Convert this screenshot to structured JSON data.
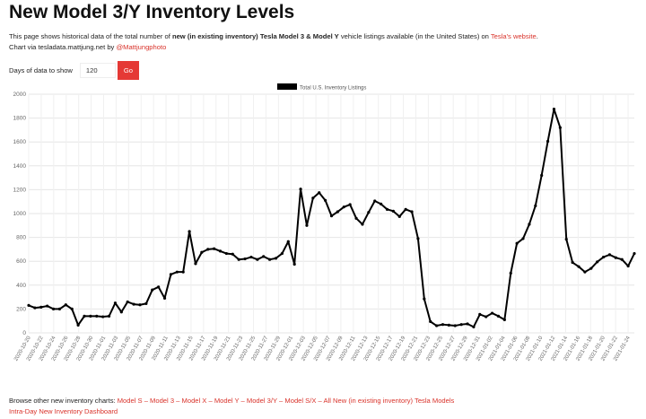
{
  "page": {
    "title": "New Model 3/Y Inventory Levels",
    "desc": {
      "p1": "This page shows historical data of the total number of ",
      "bold": "new (in existing inventory) Tesla Model 3 & Model Y",
      "p2": " vehicle listings available (in the United States) on ",
      "link": "Tesla's website",
      "p3": "."
    },
    "credit": {
      "text": "Chart via tesladata.mattjung.net by ",
      "link": "@Mattjungphoto"
    }
  },
  "controls": {
    "label": "Days of data to show",
    "value": "120",
    "go": "Go"
  },
  "footer": {
    "prefix": "Browse other new inventory charts: ",
    "links": [
      "Model S",
      "Model 3",
      "Model X",
      "Model Y",
      "Model 3/Y",
      "Model S/X",
      "All New (in existing inventory) Tesla Models"
    ],
    "separator": " – ",
    "dashboard": "Intra-Day New Inventory Dashboard"
  },
  "chart_data": {
    "type": "line",
    "series": [
      {
        "name": "Total U.S. Inventory Listings",
        "color": "#000000"
      }
    ],
    "ylim": [
      0,
      2000
    ],
    "yticks": [
      0,
      200,
      400,
      600,
      800,
      1000,
      1200,
      1400,
      1600,
      1800,
      2000
    ],
    "grid": true,
    "legend": "top",
    "xtick_labels": [
      "2020-10-20",
      "2020-10-22",
      "2020-10-24",
      "2020-10-26",
      "2020-10-28",
      "2020-10-30",
      "2020-11-01",
      "2020-11-03",
      "2020-11-05",
      "2020-11-07",
      "2020-11-09",
      "2020-11-11",
      "2020-11-13",
      "2020-11-15",
      "2020-11-17",
      "2020-11-19",
      "2020-11-21",
      "2020-11-23",
      "2020-11-25",
      "2020-11-27",
      "2020-11-29",
      "2020-12-01",
      "2020-12-03",
      "2020-12-05",
      "2020-12-07",
      "2020-12-09",
      "2020-12-11",
      "2020-12-13",
      "2020-12-15",
      "2020-12-17",
      "2020-12-19",
      "2020-12-21",
      "2020-12-23",
      "2020-12-25",
      "2020-12-27",
      "2020-12-29",
      "2020-12-31",
      "2021-01-02",
      "2021-01-04",
      "2021-01-06",
      "2021-01-08",
      "2021-01-10",
      "2021-01-12",
      "2021-01-14",
      "2021-01-16",
      "2021-01-18",
      "2021-01-20",
      "2021-01-22",
      "2021-01-24"
    ],
    "x_start": "2020-10-20",
    "x_end": "2021-01-25",
    "values": [
      230,
      210,
      215,
      225,
      200,
      200,
      235,
      200,
      65,
      140,
      140,
      140,
      135,
      140,
      250,
      175,
      260,
      240,
      235,
      245,
      360,
      385,
      290,
      490,
      510,
      510,
      850,
      580,
      675,
      700,
      705,
      685,
      665,
      660,
      615,
      620,
      635,
      615,
      640,
      615,
      625,
      665,
      765,
      575,
      1205,
      900,
      1130,
      1175,
      1110,
      980,
      1015,
      1055,
      1075,
      960,
      910,
      1010,
      1105,
      1080,
      1035,
      1020,
      975,
      1035,
      1015,
      790,
      285,
      95,
      60,
      70,
      65,
      60,
      70,
      75,
      50,
      155,
      135,
      165,
      140,
      110,
      500,
      750,
      790,
      910,
      1065,
      1320,
      1605,
      1875,
      1720,
      785,
      590,
      555,
      510,
      540,
      595,
      635,
      655,
      630,
      615,
      560,
      665
    ]
  }
}
